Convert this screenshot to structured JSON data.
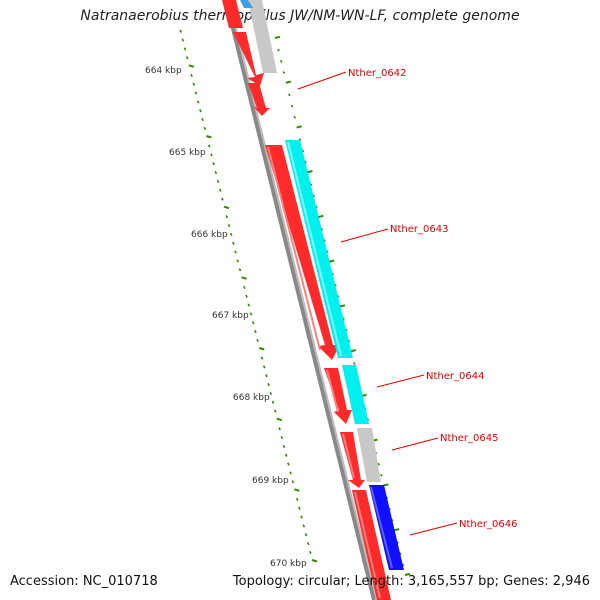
{
  "title": "Natranaerobius thermophilus JW/NM-WN-LF, complete genome",
  "footer": {
    "accession": "Accession: NC_010718",
    "summary": "Topology: circular; Length: 3,165,557 bp; Genes: 2,946"
  },
  "colors": {
    "gene_red": "#ff0000",
    "cds_cyan": "#00ffff",
    "cds_gray": "#c0c0c0",
    "cds_blue": "#0000ff",
    "backbone": "#777777",
    "tick_green": "#2e8b00",
    "label_red": "#e00000"
  },
  "ruler": {
    "ticks": [
      "664 kbp",
      "665 kbp",
      "666 kbp",
      "667 kbp",
      "668 kbp",
      "669 kbp",
      "670 kbp"
    ]
  },
  "genes": [
    {
      "name": "Nther_0642"
    },
    {
      "name": "Nther_0643"
    },
    {
      "name": "Nther_0644"
    },
    {
      "name": "Nther_0645"
    },
    {
      "name": "Nther_0646"
    }
  ]
}
